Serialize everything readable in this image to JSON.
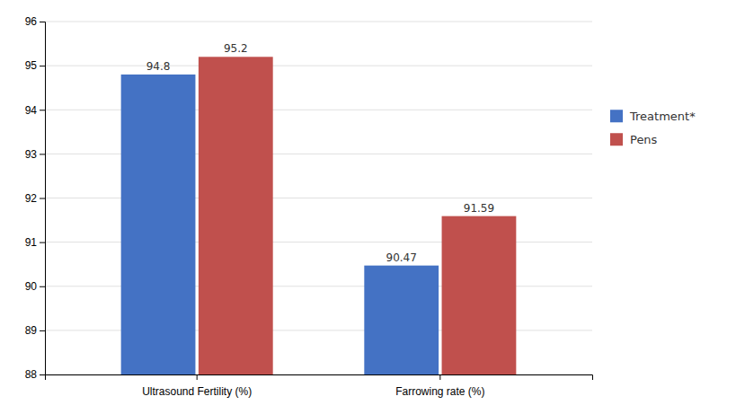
{
  "chart_data": {
    "type": "bar",
    "categories": [
      "Ultrasound Fertility (%)",
      "Farrowing rate (%)"
    ],
    "series": [
      {
        "name": "Treatment*",
        "color": "#4472C4",
        "values": [
          94.8,
          90.47
        ]
      },
      {
        "name": "Pens",
        "color": "#C0504D",
        "values": [
          95.2,
          91.59
        ]
      }
    ],
    "ylim": [
      88,
      96
    ],
    "yticks": [
      88,
      89,
      90,
      91,
      92,
      93,
      94,
      95,
      96
    ],
    "grid": true,
    "legend": "right",
    "data_labels": true
  }
}
